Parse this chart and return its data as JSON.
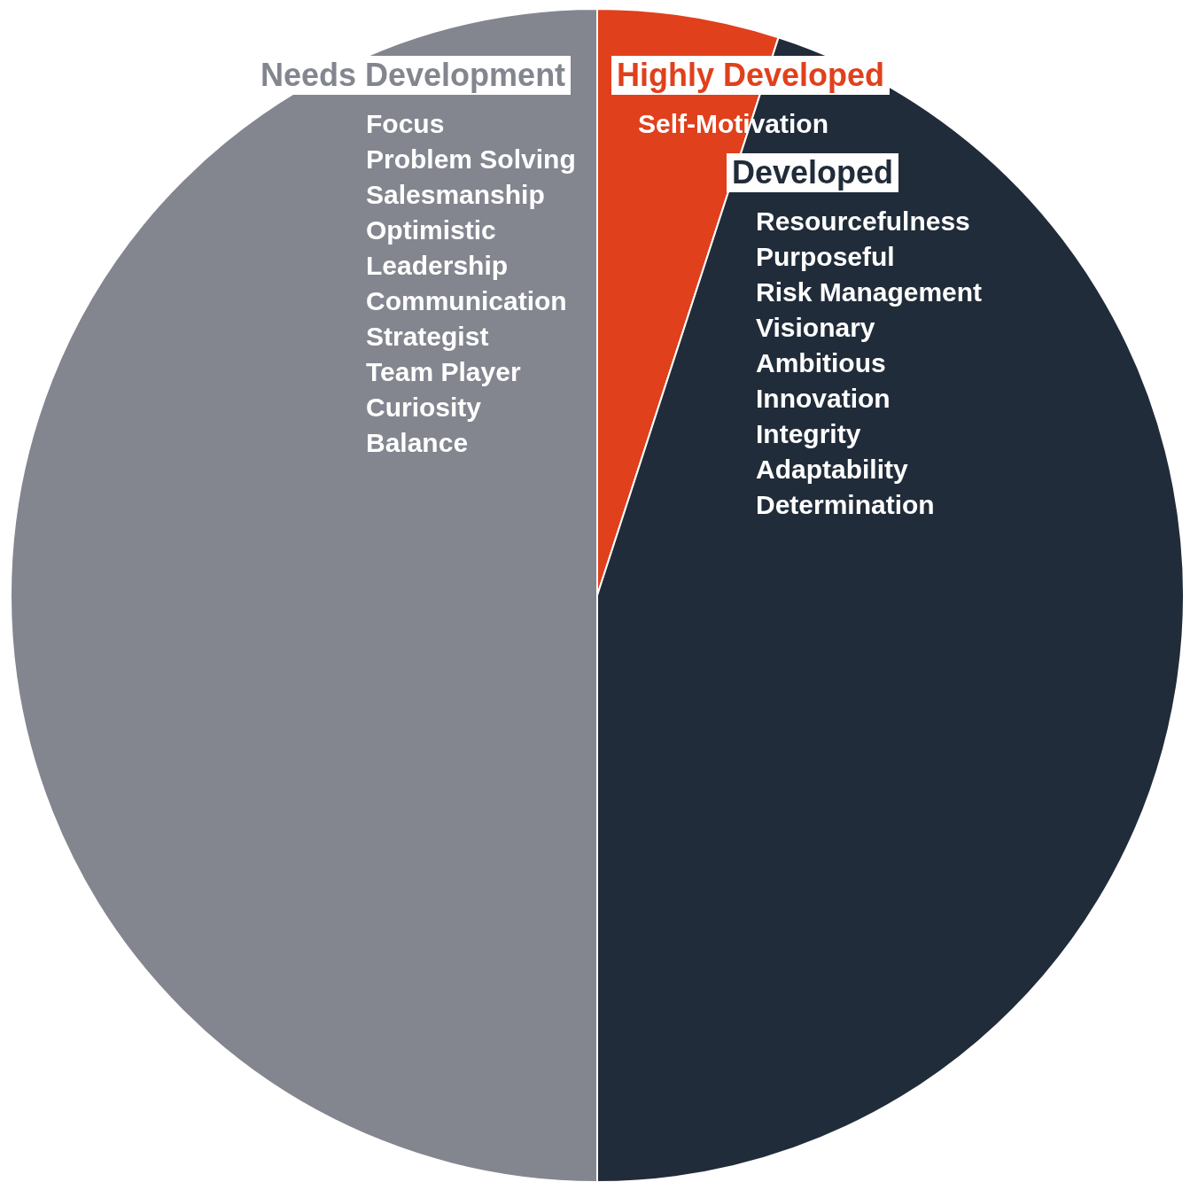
{
  "chart_data": {
    "type": "pie",
    "categories": [
      "Highly Developed",
      "Developed",
      "Needs Development"
    ],
    "values": [
      5,
      45,
      50
    ],
    "colors": [
      "#e0401c",
      "#212c3a",
      "#83868f"
    ],
    "annotations": [
      {
        "text": "Self-Motivation",
        "x": "Highly Developed"
      },
      {
        "text": "Resourcefulness",
        "x": "Developed"
      },
      {
        "text": "Purposeful",
        "x": "Developed"
      },
      {
        "text": "Risk Management",
        "x": "Developed"
      },
      {
        "text": "Visionary",
        "x": "Developed"
      },
      {
        "text": "Ambitious",
        "x": "Developed"
      },
      {
        "text": "Innovation",
        "x": "Developed"
      },
      {
        "text": "Integrity",
        "x": "Developed"
      },
      {
        "text": "Adaptability",
        "x": "Developed"
      },
      {
        "text": "Determination",
        "x": "Developed"
      },
      {
        "text": "Focus",
        "x": "Needs Development"
      },
      {
        "text": "Problem Solving",
        "x": "Needs Development"
      },
      {
        "text": "Salesmanship",
        "x": "Needs Development"
      },
      {
        "text": "Optimistic",
        "x": "Needs Development"
      },
      {
        "text": "Leadership",
        "x": "Needs Development"
      },
      {
        "text": "Communication",
        "x": "Needs Development"
      },
      {
        "text": "Strategist",
        "x": "Needs Development"
      },
      {
        "text": "Team Player",
        "x": "Needs Development"
      },
      {
        "text": "Curiosity",
        "x": "Needs Development"
      },
      {
        "text": "Balance",
        "x": "Needs Development"
      }
    ]
  }
}
